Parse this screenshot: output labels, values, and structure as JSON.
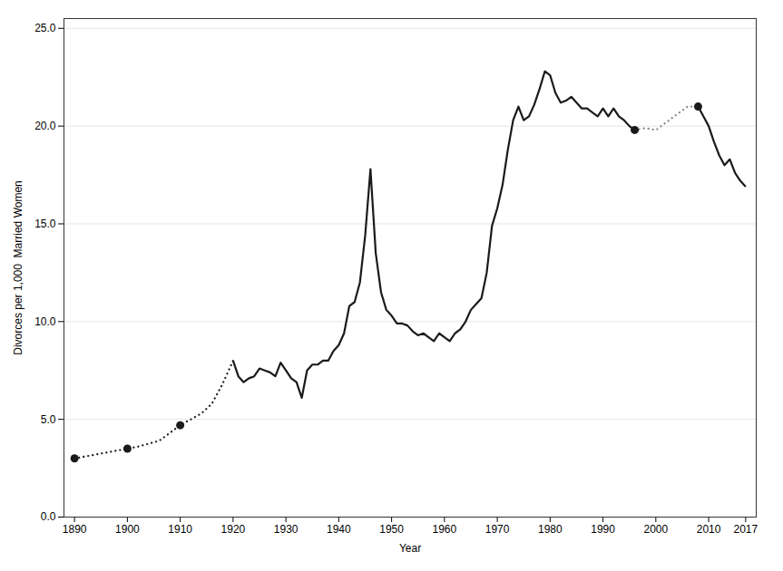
{
  "chart_data": {
    "type": "line",
    "xlabel": "Year",
    "ylabel": "Divorces per 1,000  Married Women",
    "xlim": [
      1888,
      2019
    ],
    "ylim": [
      0.0,
      25.5
    ],
    "xticks": [
      1890,
      1900,
      1910,
      1920,
      1930,
      1940,
      1950,
      1960,
      1970,
      1980,
      1990,
      2000,
      2010,
      2017
    ],
    "yticks": [
      {
        "value": 0.0,
        "label": "0.0"
      },
      {
        "value": 5.0,
        "label": "5.0"
      },
      {
        "value": 10.0,
        "label": "10.0"
      },
      {
        "value": 15.0,
        "label": "15.0"
      },
      {
        "value": 20.0,
        "label": "20.0"
      },
      {
        "value": 25.0,
        "label": "25.0"
      }
    ],
    "grid": true,
    "series": [
      {
        "type": "line",
        "line_style": "dotted",
        "color": "#1a1a1a",
        "x": [
          1890,
          1892,
          1894,
          1896,
          1898,
          1900,
          1902,
          1904,
          1906,
          1908,
          1910,
          1912,
          1914,
          1916,
          1918,
          1920
        ],
        "values": [
          3.0,
          3.1,
          3.2,
          3.3,
          3.4,
          3.5,
          3.6,
          3.75,
          3.9,
          4.3,
          4.7,
          5.0,
          5.3,
          5.8,
          6.8,
          8.0
        ]
      },
      {
        "type": "scatter",
        "marker": "o",
        "color": "#1a1a1a",
        "x": [
          1890,
          1900,
          1910
        ],
        "values": [
          3.0,
          3.5,
          4.7
        ]
      },
      {
        "type": "line",
        "line_style": "solid",
        "color": "#1a1a1a",
        "x": [
          1920,
          1921,
          1922,
          1923,
          1924,
          1925,
          1926,
          1927,
          1928,
          1929,
          1930,
          1931,
          1932,
          1933,
          1934,
          1935,
          1936,
          1937,
          1938,
          1939,
          1940,
          1941,
          1942,
          1943,
          1944,
          1945,
          1946,
          1947,
          1948,
          1949,
          1950,
          1951,
          1952,
          1953,
          1954,
          1955,
          1956,
          1957,
          1958,
          1959,
          1960,
          1961,
          1962,
          1963,
          1964,
          1965,
          1966,
          1967,
          1968,
          1969,
          1970,
          1971,
          1972,
          1973,
          1974,
          1975,
          1976,
          1977,
          1978,
          1979,
          1980,
          1981,
          1982,
          1983,
          1984,
          1985,
          1986,
          1987,
          1988,
          1989,
          1990,
          1991,
          1992,
          1993,
          1994,
          1995,
          1996
        ],
        "values": [
          8.0,
          7.2,
          6.9,
          7.1,
          7.2,
          7.6,
          7.5,
          7.4,
          7.2,
          7.9,
          7.5,
          7.1,
          6.9,
          6.1,
          7.5,
          7.8,
          7.8,
          8.0,
          8.0,
          8.5,
          8.8,
          9.4,
          10.8,
          11.0,
          12.0,
          14.4,
          17.8,
          13.5,
          11.5,
          10.6,
          10.3,
          9.9,
          9.9,
          9.8,
          9.5,
          9.3,
          9.4,
          9.2,
          9.0,
          9.4,
          9.2,
          9.0,
          9.4,
          9.6,
          10.0,
          10.6,
          10.9,
          11.2,
          12.5,
          14.9,
          15.8,
          17.0,
          18.8,
          20.3,
          21.0,
          20.3,
          20.5,
          21.1,
          21.9,
          22.8,
          22.6,
          21.7,
          21.2,
          21.3,
          21.5,
          21.2,
          20.9,
          20.9,
          20.7,
          20.5,
          20.9,
          20.5,
          20.9,
          20.5,
          20.3,
          20.0,
          19.8
        ]
      },
      {
        "type": "line",
        "line_style": "dotted",
        "color": "#888888",
        "x": [
          1996,
          1997,
          1998,
          1999,
          2000,
          2001,
          2002,
          2003,
          2004,
          2005,
          2006,
          2007,
          2008
        ],
        "values": [
          19.8,
          19.85,
          19.9,
          19.85,
          19.8,
          20.0,
          20.2,
          20.4,
          20.6,
          20.8,
          21.0,
          21.0,
          21.0
        ]
      },
      {
        "type": "scatter",
        "marker": "o",
        "color": "#1a1a1a",
        "x": [
          1996,
          2008
        ],
        "values": [
          19.8,
          21.0
        ]
      },
      {
        "type": "line",
        "line_style": "solid",
        "color": "#1a1a1a",
        "x": [
          2008,
          2009,
          2010,
          2011,
          2012,
          2013,
          2014,
          2015,
          2016,
          2017
        ],
        "values": [
          21.0,
          20.5,
          20.0,
          19.2,
          18.5,
          18.0,
          18.3,
          17.6,
          17.2,
          16.9
        ]
      }
    ]
  }
}
